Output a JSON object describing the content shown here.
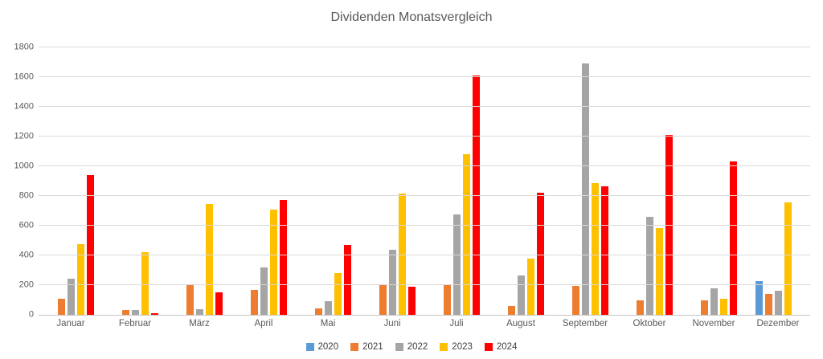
{
  "title": "Dividenden Monatsvergleich",
  "chart_data": {
    "type": "bar",
    "title": "Dividenden Monatsvergleich",
    "categories": [
      "Januar",
      "Februar",
      "März",
      "April",
      "Mai",
      "Juni",
      "Juli",
      "August",
      "September",
      "Oktober",
      "November",
      "Dezember"
    ],
    "series": [
      {
        "name": "2020",
        "color": "#5B9BD5",
        "values": [
          0,
          0,
          0,
          0,
          0,
          0,
          0,
          0,
          0,
          0,
          0,
          225
        ]
      },
      {
        "name": "2021",
        "color": "#ED7D31",
        "values": [
          110,
          35,
          205,
          170,
          45,
          200,
          205,
          60,
          195,
          100,
          100,
          140
        ]
      },
      {
        "name": "2022",
        "color": "#A5A5A5",
        "values": [
          245,
          30,
          40,
          320,
          90,
          440,
          675,
          265,
          1690,
          660,
          180,
          160
        ]
      },
      {
        "name": "2023",
        "color": "#FFC000",
        "values": [
          475,
          420,
          745,
          710,
          280,
          815,
          1080,
          380,
          885,
          585,
          110,
          755
        ]
      },
      {
        "name": "2024",
        "color": "#FF0000",
        "values": [
          940,
          10,
          150,
          775,
          470,
          190,
          1610,
          820,
          865,
          1210,
          1030,
          0
        ]
      }
    ],
    "xlabel": "",
    "ylabel": "",
    "ylim": [
      0,
      1800
    ],
    "ytick_step": 200,
    "grid": true,
    "legend_position": "bottom",
    "axis_text_color": "#595959",
    "gridline_color": "#D9D9D9"
  }
}
